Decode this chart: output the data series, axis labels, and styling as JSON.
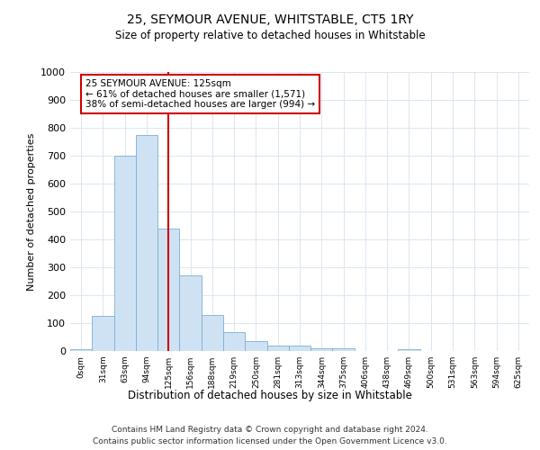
{
  "title": "25, SEYMOUR AVENUE, WHITSTABLE, CT5 1RY",
  "subtitle": "Size of property relative to detached houses in Whitstable",
  "xlabel": "Distribution of detached houses by size in Whitstable",
  "ylabel": "Number of detached properties",
  "categories": [
    "0sqm",
    "31sqm",
    "63sqm",
    "94sqm",
    "125sqm",
    "156sqm",
    "188sqm",
    "219sqm",
    "250sqm",
    "281sqm",
    "313sqm",
    "344sqm",
    "375sqm",
    "406sqm",
    "438sqm",
    "469sqm",
    "500sqm",
    "531sqm",
    "563sqm",
    "594sqm",
    "625sqm"
  ],
  "bar_heights": [
    5,
    125,
    700,
    775,
    440,
    270,
    130,
    68,
    37,
    20,
    20,
    10,
    10,
    0,
    0,
    5,
    0,
    0,
    0,
    0,
    0
  ],
  "bar_color": "#cfe2f3",
  "bar_edge_color": "#7bafd4",
  "highlight_index": 4,
  "highlight_color": "#cc0000",
  "ylim": [
    0,
    1000
  ],
  "yticks": [
    0,
    100,
    200,
    300,
    400,
    500,
    600,
    700,
    800,
    900,
    1000
  ],
  "annotation_box_text": "25 SEYMOUR AVENUE: 125sqm\n← 61% of detached houses are smaller (1,571)\n38% of semi-detached houses are larger (994) →",
  "annotation_box_color": "#cc0000",
  "footer_line1": "Contains HM Land Registry data © Crown copyright and database right 2024.",
  "footer_line2": "Contains public sector information licensed under the Open Government Licence v3.0.",
  "background_color": "#ffffff",
  "grid_color": "#dce6f1"
}
